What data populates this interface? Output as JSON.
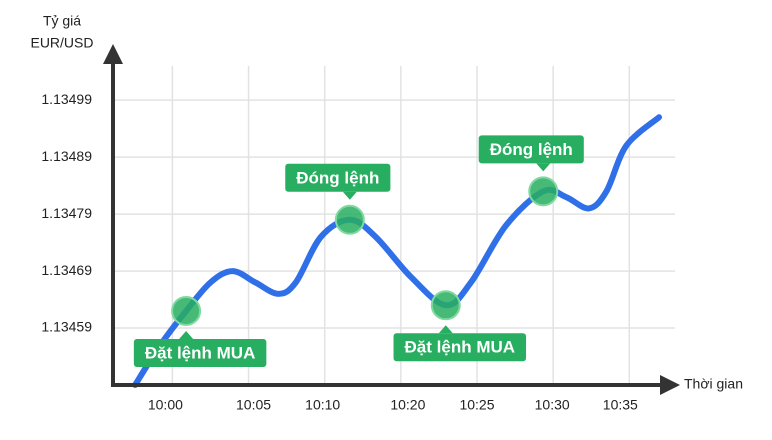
{
  "chart_data": {
    "type": "line",
    "y_axis_title": [
      "Tỷ giá",
      "EUR/USD"
    ],
    "x_axis_title": "Thời gian",
    "categories": [
      "10:00",
      "10:05",
      "10:10",
      "10:20",
      "10:25",
      "10:30",
      "10:35"
    ],
    "ylim": [
      1.13449,
      1.13505
    ],
    "yticks": [
      1.13459,
      1.13469,
      1.13479,
      1.13489,
      1.13499
    ],
    "xlim": [
      -0.78,
      6.6
    ],
    "grid": true,
    "series": [
      {
        "color": "#2f6fe8",
        "x": [
          -0.49,
          -0.16,
          0.18,
          0.5,
          0.79,
          1.09,
          1.39,
          1.62,
          1.95,
          2.33,
          2.67,
          3.13,
          3.59,
          3.92,
          4.38,
          4.87,
          5.17,
          5.47,
          5.7,
          5.96,
          6.39
        ],
        "values": [
          1.13449,
          1.13456,
          1.13462,
          1.13467,
          1.13469,
          1.13467,
          1.13465,
          1.13467,
          1.13475,
          1.13478,
          1.13475,
          1.13468,
          1.13463,
          1.13467,
          1.13477,
          1.13483,
          1.13482,
          1.1348,
          1.13483,
          1.13491,
          1.13496
        ]
      }
    ],
    "annotations": [
      {
        "text": "Đặt lệnh MUA",
        "x": 0.18,
        "y": 1.13462,
        "position": "below"
      },
      {
        "text": "Đóng lệnh",
        "x": 2.33,
        "y": 1.13478,
        "position": "above"
      },
      {
        "text": "Đặt lệnh MUA",
        "x": 3.59,
        "y": 1.13463,
        "position": "below"
      },
      {
        "text": "Đóng lệnh",
        "x": 4.87,
        "y": 1.13483,
        "position": "above"
      }
    ],
    "annotation_color": "#27ae60"
  }
}
